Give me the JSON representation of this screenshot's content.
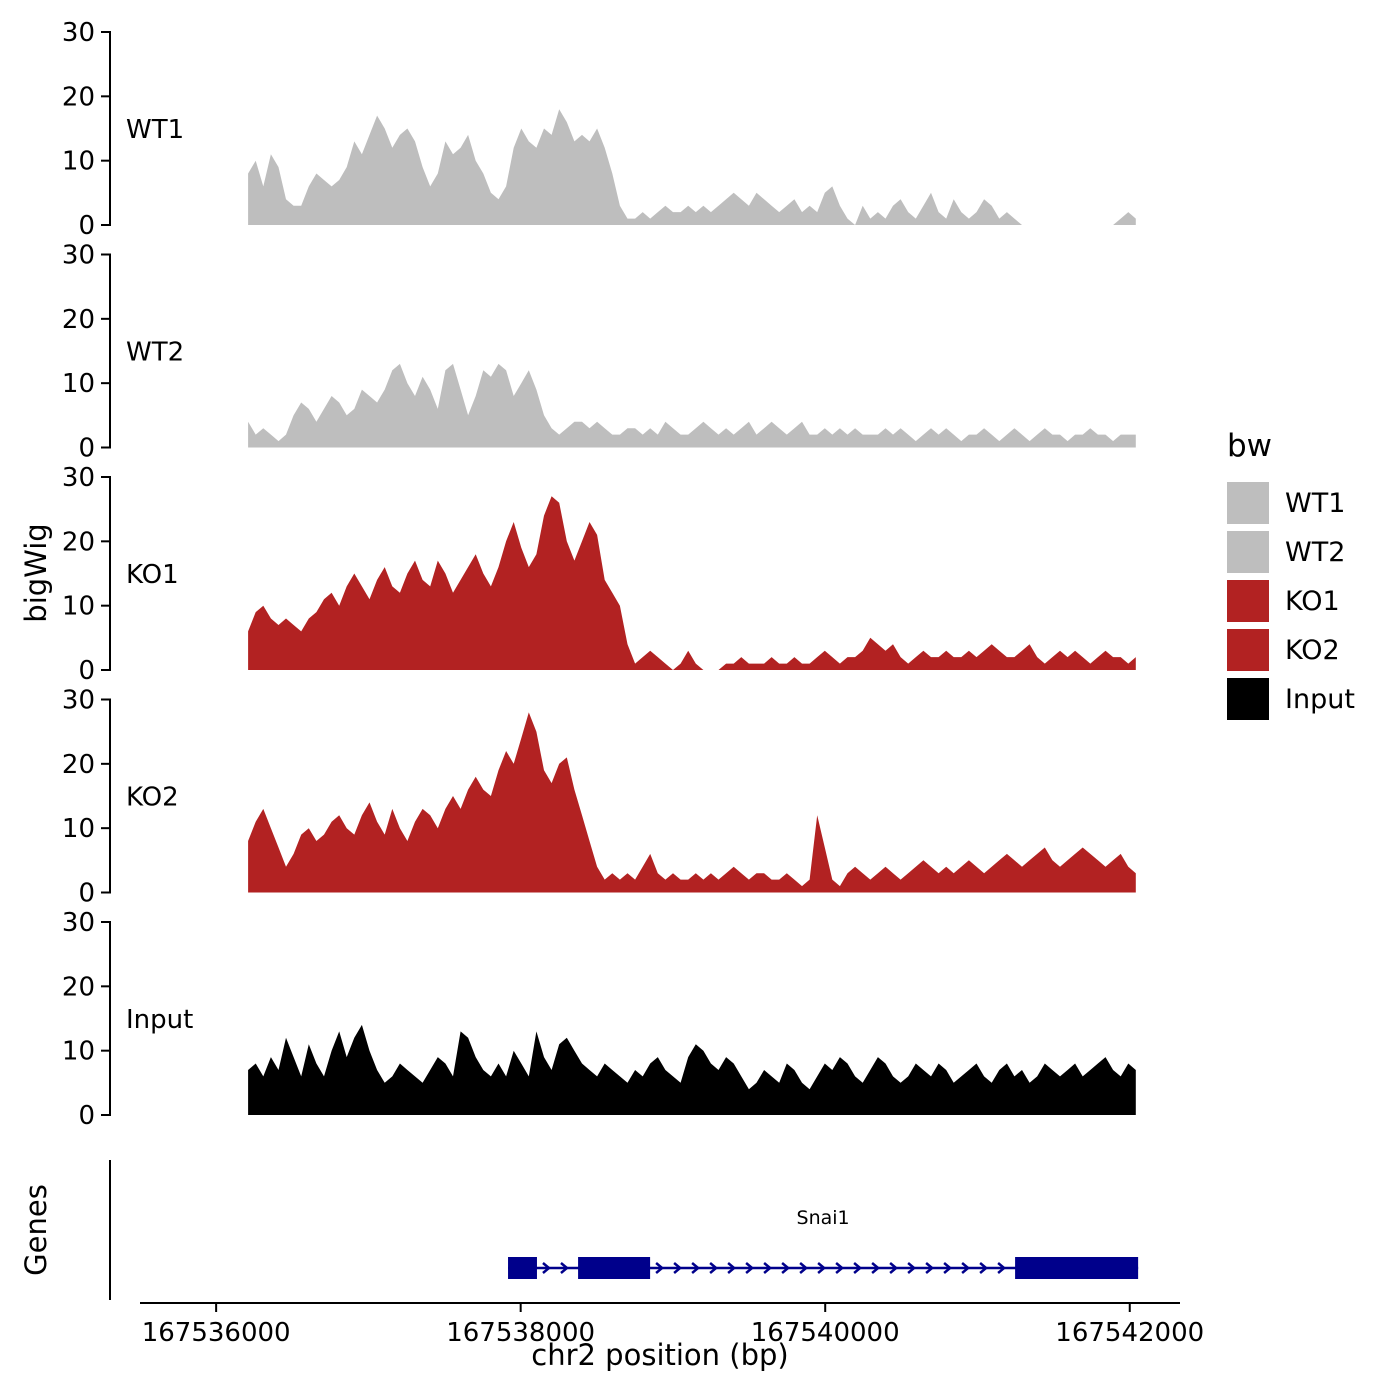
{
  "figure": {
    "y_axis_label": "bigWig",
    "genes_axis_label": "Genes",
    "x_axis_label": "chr2 position (bp)"
  },
  "legend": {
    "title": "bw",
    "items": [
      {
        "label": "WT1",
        "color": "#bebebe"
      },
      {
        "label": "WT2",
        "color": "#bebebe"
      },
      {
        "label": "KO1",
        "color": "#b22222"
      },
      {
        "label": "KO2",
        "color": "#b22222"
      },
      {
        "label": "Input",
        "color": "#000000"
      }
    ]
  },
  "chart_data": {
    "type": "area",
    "title": "",
    "xlabel": "chr2 position (bp)",
    "ylabel": "bigWig",
    "x_domain": [
      167535500,
      167542330
    ],
    "x_data_range": [
      167536210,
      167542040
    ],
    "x_ticks": [
      167536000,
      167538000,
      167540000,
      167542000
    ],
    "y_ticks": [
      0,
      10,
      20,
      30
    ],
    "ylim": [
      0,
      30
    ],
    "tracks": [
      {
        "name": "WT1",
        "color": "#bebebe",
        "values": [
          8,
          10,
          6,
          11,
          9,
          4,
          3,
          3,
          6,
          8,
          7,
          6,
          7,
          9,
          13,
          11,
          14,
          17,
          15,
          12,
          14,
          15,
          13,
          9,
          6,
          8,
          13,
          11,
          12,
          14,
          10,
          8,
          5,
          4,
          6,
          12,
          15,
          13,
          12,
          15,
          14,
          18,
          16,
          13,
          14,
          13,
          15,
          12,
          8,
          3,
          1,
          1,
          2,
          1,
          2,
          3,
          2,
          2,
          3,
          2,
          3,
          2,
          3,
          4,
          5,
          4,
          3,
          5,
          4,
          3,
          2,
          3,
          4,
          2,
          3,
          2,
          5,
          6,
          3,
          1,
          0,
          3,
          1,
          2,
          1,
          3,
          4,
          2,
          1,
          3,
          5,
          2,
          1,
          4,
          2,
          1,
          2,
          4,
          3,
          1,
          2,
          1,
          0,
          0,
          0,
          0,
          0,
          0,
          0,
          0,
          0,
          0,
          0,
          0,
          0,
          1,
          2,
          1
        ]
      },
      {
        "name": "WT2",
        "color": "#bebebe",
        "values": [
          4,
          2,
          3,
          2,
          1,
          2,
          5,
          7,
          6,
          4,
          6,
          8,
          7,
          5,
          6,
          9,
          8,
          7,
          9,
          12,
          13,
          10,
          8,
          11,
          9,
          6,
          12,
          13,
          9,
          5,
          8,
          12,
          11,
          13,
          12,
          8,
          10,
          12,
          9,
          5,
          3,
          2,
          3,
          4,
          4,
          3,
          4,
          3,
          2,
          2,
          3,
          3,
          2,
          3,
          2,
          4,
          3,
          2,
          2,
          3,
          4,
          3,
          2,
          3,
          2,
          3,
          4,
          2,
          3,
          4,
          3,
          2,
          3,
          4,
          2,
          2,
          3,
          2,
          3,
          2,
          3,
          2,
          2,
          2,
          3,
          2,
          3,
          2,
          1,
          2,
          3,
          2,
          3,
          2,
          1,
          2,
          2,
          3,
          2,
          1,
          2,
          3,
          2,
          1,
          2,
          3,
          2,
          2,
          1,
          2,
          2,
          3,
          2,
          2,
          1,
          2,
          2,
          2
        ]
      },
      {
        "name": "KO1",
        "color": "#b22222",
        "values": [
          6,
          9,
          10,
          8,
          7,
          8,
          7,
          6,
          8,
          9,
          11,
          12,
          10,
          13,
          15,
          13,
          11,
          14,
          16,
          13,
          12,
          15,
          17,
          14,
          13,
          17,
          15,
          12,
          14,
          16,
          18,
          15,
          13,
          16,
          20,
          23,
          19,
          16,
          18,
          24,
          27,
          26,
          20,
          17,
          20,
          23,
          21,
          14,
          12,
          10,
          4,
          1,
          2,
          3,
          2,
          1,
          0,
          1,
          3,
          1,
          0,
          0,
          0,
          1,
          1,
          2,
          1,
          1,
          1,
          2,
          1,
          1,
          2,
          1,
          1,
          2,
          3,
          2,
          1,
          2,
          2,
          3,
          5,
          4,
          3,
          4,
          2,
          1,
          2,
          3,
          2,
          2,
          3,
          2,
          2,
          3,
          2,
          3,
          4,
          3,
          2,
          2,
          3,
          4,
          2,
          1,
          2,
          3,
          2,
          3,
          2,
          1,
          2,
          3,
          2,
          2,
          1,
          2
        ]
      },
      {
        "name": "KO2",
        "color": "#b22222",
        "values": [
          8,
          11,
          13,
          10,
          7,
          4,
          6,
          9,
          10,
          8,
          9,
          11,
          12,
          10,
          9,
          12,
          14,
          11,
          9,
          13,
          10,
          8,
          11,
          13,
          12,
          10,
          13,
          15,
          13,
          16,
          18,
          16,
          15,
          19,
          22,
          20,
          24,
          28,
          25,
          19,
          17,
          20,
          21,
          16,
          12,
          8,
          4,
          2,
          3,
          2,
          3,
          2,
          4,
          6,
          3,
          2,
          3,
          2,
          2,
          3,
          2,
          3,
          2,
          3,
          4,
          3,
          2,
          3,
          3,
          2,
          2,
          3,
          2,
          1,
          2,
          12,
          7,
          2,
          1,
          3,
          4,
          3,
          2,
          3,
          4,
          3,
          2,
          3,
          4,
          5,
          4,
          3,
          4,
          3,
          4,
          5,
          4,
          3,
          4,
          5,
          6,
          5,
          4,
          5,
          6,
          7,
          5,
          4,
          5,
          6,
          7,
          6,
          5,
          4,
          5,
          6,
          4,
          3
        ]
      },
      {
        "name": "Input",
        "color": "#000000",
        "values": [
          7,
          8,
          6,
          9,
          7,
          12,
          9,
          6,
          11,
          8,
          6,
          10,
          13,
          9,
          12,
          14,
          10,
          7,
          5,
          6,
          8,
          7,
          6,
          5,
          7,
          9,
          8,
          6,
          13,
          12,
          9,
          7,
          6,
          8,
          6,
          10,
          8,
          6,
          13,
          9,
          7,
          11,
          12,
          10,
          8,
          7,
          6,
          8,
          7,
          6,
          5,
          7,
          6,
          8,
          9,
          7,
          6,
          5,
          9,
          11,
          10,
          8,
          7,
          9,
          8,
          6,
          4,
          5,
          7,
          6,
          5,
          8,
          7,
          5,
          4,
          6,
          8,
          7,
          9,
          8,
          6,
          5,
          7,
          9,
          8,
          6,
          5,
          6,
          8,
          7,
          6,
          8,
          7,
          5,
          6,
          7,
          8,
          6,
          5,
          7,
          8,
          6,
          7,
          5,
          6,
          8,
          7,
          6,
          7,
          8,
          6,
          7,
          8,
          9,
          7,
          6,
          8,
          7
        ]
      }
    ],
    "gene_track": {
      "label": "Snai1",
      "strand": "+",
      "color": "#00008B",
      "start_bp": 167537917,
      "end_bp": 167542055,
      "exons_bp": [
        [
          167537917,
          167538107
        ],
        [
          167538377,
          167538850
        ],
        [
          167541247,
          167542055
        ]
      ]
    }
  }
}
